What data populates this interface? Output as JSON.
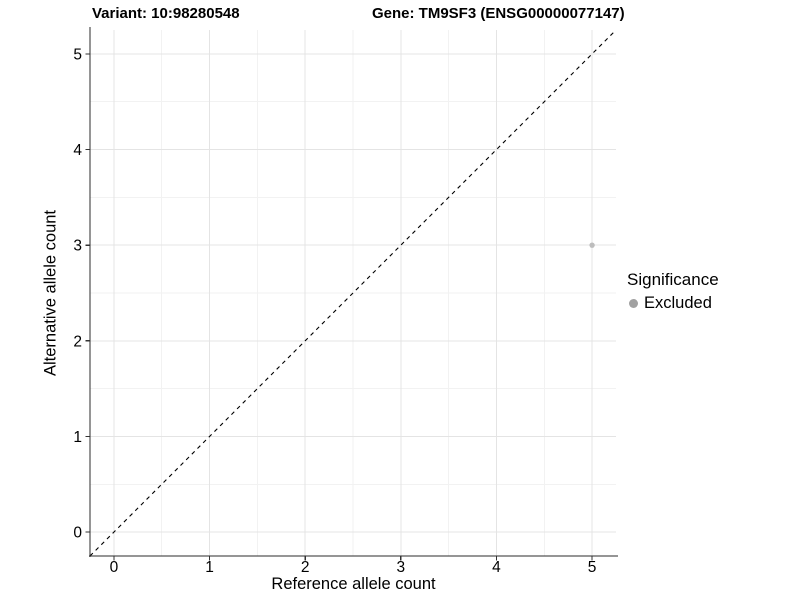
{
  "header": {
    "variant_title": "Variant: 10:98280548",
    "gene_title": "Gene: TM9SF3 (ENSG00000077147)"
  },
  "legend": {
    "title": "Significance",
    "items": [
      {
        "label": "Excluded",
        "marker": "circle",
        "marker_color": "#a1a1a1"
      }
    ]
  },
  "chart_data": {
    "type": "scatter",
    "titles": [
      "Variant: 10:98280548",
      "Gene: TM9SF3 (ENSG00000077147)"
    ],
    "xlabel": "Reference allele count",
    "ylabel": "Alternative allele count",
    "xlim": [
      -0.25,
      5.25
    ],
    "ylim": [
      -0.25,
      5.25
    ],
    "x_ticks": [
      0,
      1,
      2,
      3,
      4,
      5
    ],
    "y_ticks": [
      0,
      1,
      2,
      3,
      4,
      5
    ],
    "minor_gridlines_x": [
      0.5,
      1.5,
      2.5,
      3.5,
      4.5
    ],
    "minor_gridlines_y": [
      0.5,
      1.5,
      2.5,
      3.5,
      4.5
    ],
    "grid": "major+minor",
    "legend_position": "right",
    "series": [
      {
        "name": "Excluded",
        "color": "#bdbdbd",
        "points": [
          {
            "x": 5,
            "y": 3
          }
        ]
      }
    ],
    "reference_line": {
      "kind": "identity y=x",
      "style": "dashed",
      "color": "#000000",
      "from": [
        -0.25,
        -0.25
      ],
      "to": [
        5.25,
        5.25
      ]
    }
  },
  "style_colors": {
    "background": "#ffffff",
    "major_grid": "#e4e4e4",
    "minor_grid": "#f2f2f2",
    "axis_line": "#2b2b2b",
    "tick": "#333333",
    "text": "#000000"
  }
}
